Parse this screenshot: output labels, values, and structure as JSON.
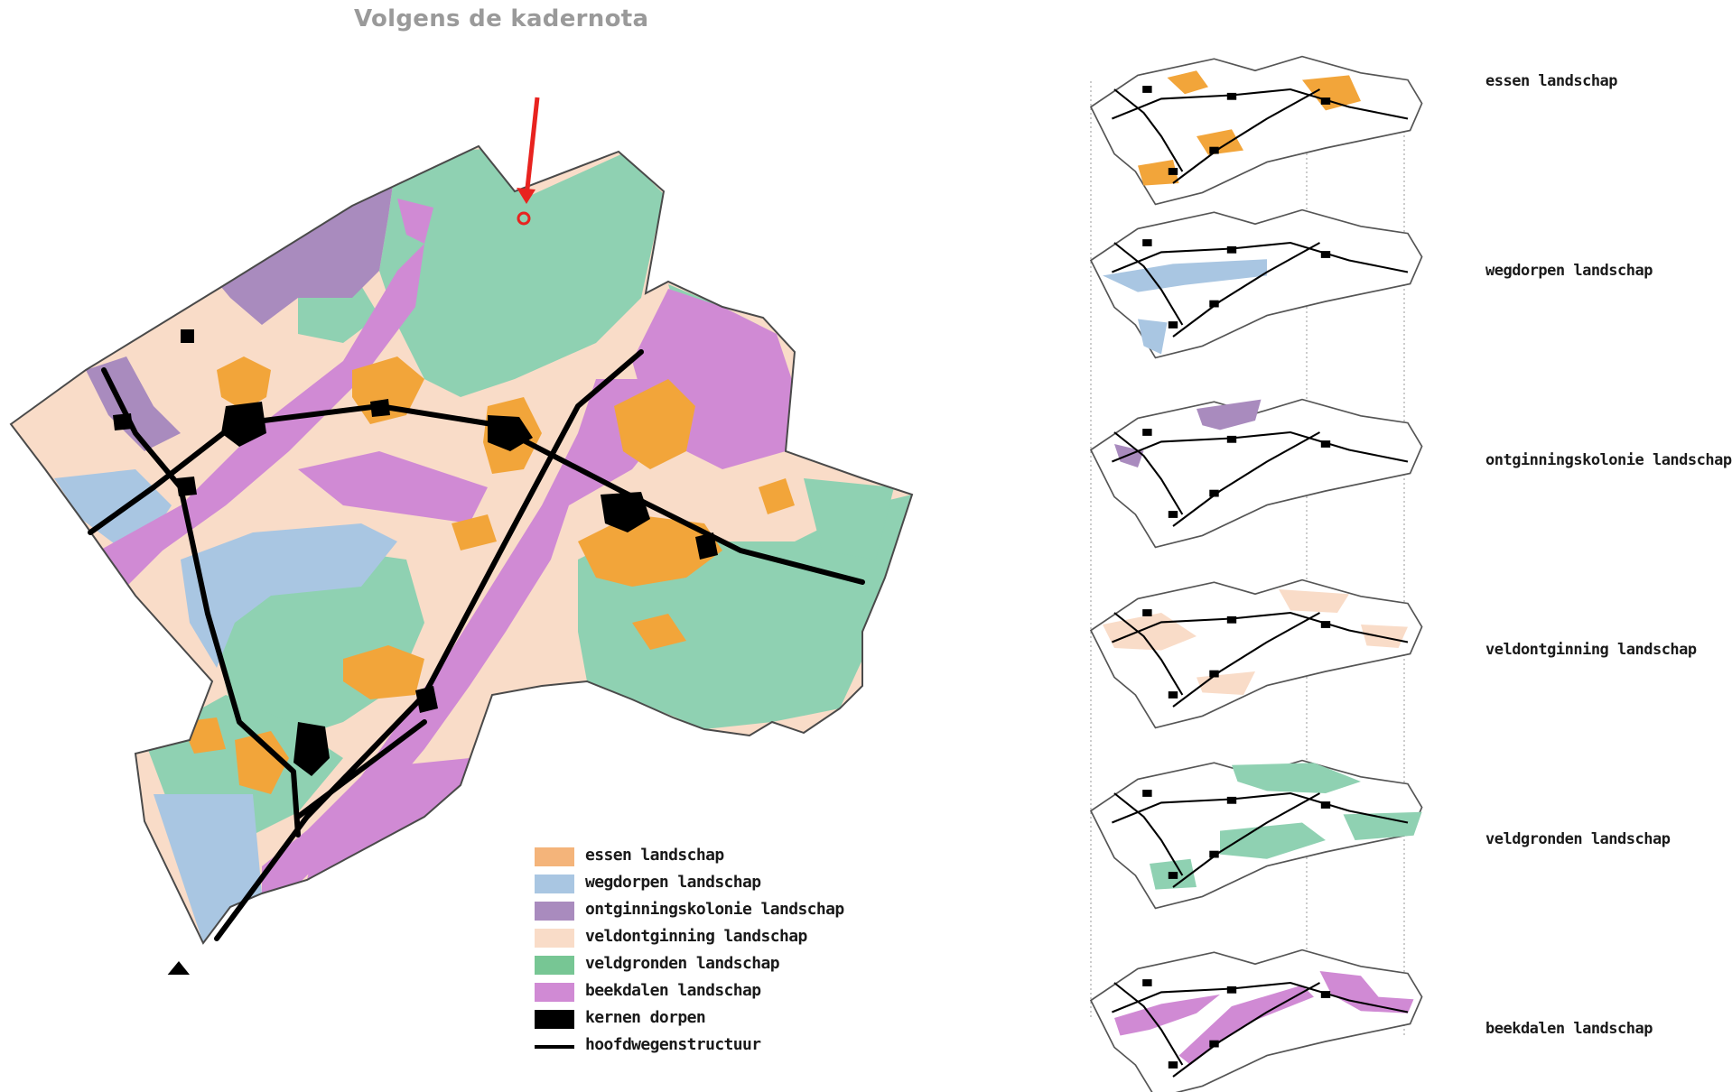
{
  "title": "Volgens de kadernota",
  "colors": {
    "essen": "#f2a53a",
    "wegdorpen": "#a9c6e2",
    "ontginningskolonie": "#a98bbe",
    "veldontginning": "#f9dcc8",
    "veldgronden": "#8fd1b2",
    "beekdalen": "#d08ad4",
    "kernen": "#000000",
    "hoofdwegen": "#000000",
    "marker": "#e8231f",
    "north_arrow": "#000000"
  },
  "legend": [
    {
      "key": "essen",
      "label": "essen landschap",
      "swatch": "#f4b47a",
      "kind": "area"
    },
    {
      "key": "wegdorpen",
      "label": "wegdorpen landschap",
      "swatch": "#a9c6e2",
      "kind": "area"
    },
    {
      "key": "ontginningskolonie",
      "label": "ontginningskolonie landschap",
      "swatch": "#a98bbe",
      "kind": "area"
    },
    {
      "key": "veldontginning",
      "label": "veldontginning landschap",
      "swatch": "#f9dcc8",
      "kind": "area"
    },
    {
      "key": "veldgronden",
      "label": "veldgronden landschap",
      "swatch": "#77c694",
      "kind": "area"
    },
    {
      "key": "beekdalen",
      "label": "beekdalen landschap",
      "swatch": "#d08ad4",
      "kind": "area"
    },
    {
      "key": "kernen",
      "label": "kernen dorpen",
      "swatch": "#000000",
      "kind": "area"
    },
    {
      "key": "hoofdwegen",
      "label": "hoofdwegenstructuur",
      "swatch": "#000000",
      "kind": "line"
    }
  ],
  "small_maps": [
    {
      "label": "essen landschap",
      "layer": "essen"
    },
    {
      "label": "wegdorpen landschap",
      "layer": "wegdorpen"
    },
    {
      "label": "ontginningskolonie landschap",
      "layer": "ontginningskolonie"
    },
    {
      "label": "veldontginning landschap",
      "layer": "veldontginning"
    },
    {
      "label": "veldgronden landschap",
      "layer": "veldgronden"
    },
    {
      "label": "beekdalen landschap",
      "layer": "beekdalen"
    }
  ],
  "marker": {
    "icon": "red-arrow-icon"
  },
  "north": {
    "icon": "north-arrow-icon"
  }
}
